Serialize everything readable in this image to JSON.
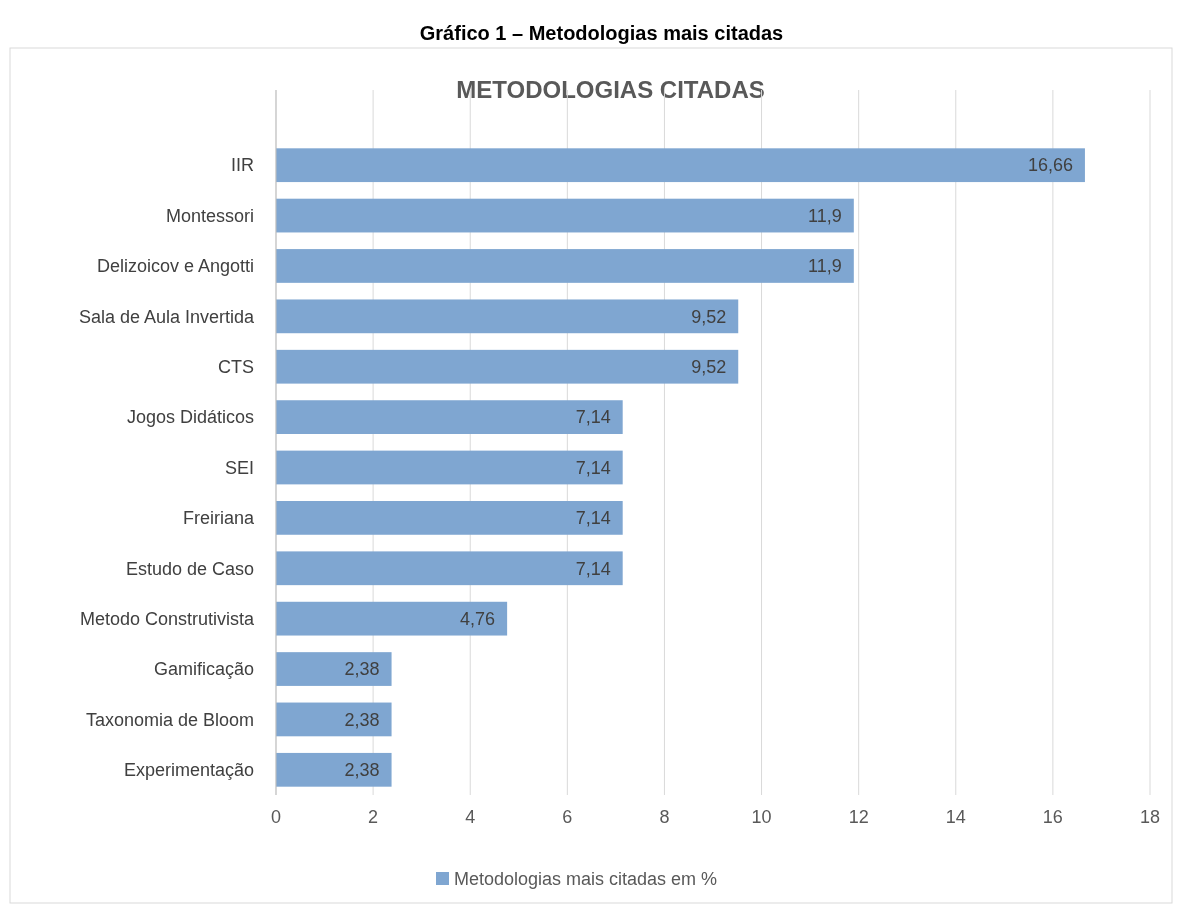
{
  "chart_data": {
    "type": "bar",
    "orientation": "horizontal",
    "title": "Gráfico 1 – Metodologias mais citadas",
    "subtitle": "METODOLOGIAS CITADAS",
    "categories": [
      "IIR",
      "Montessori",
      "Delizoicov e Angotti",
      "Sala de Aula Invertida",
      "CTS",
      "Jogos Didáticos",
      "SEI",
      "Freiriana",
      "Estudo de Caso",
      "Metodo Construtivista",
      "Gamificação",
      "Taxonomia de Bloom",
      "Experimentação"
    ],
    "series": [
      {
        "name": "Metodologias mais citadas em %",
        "color": "#7fa6d1",
        "values": [
          16.66,
          11.9,
          11.9,
          9.52,
          9.52,
          7.14,
          7.14,
          7.14,
          7.14,
          4.76,
          2.38,
          2.38,
          2.38
        ],
        "value_labels": [
          "16,66",
          "11,9",
          "11,9",
          "9,52",
          "9,52",
          "7,14",
          "7,14",
          "7,14",
          "7,14",
          "4,76",
          "2,38",
          "2,38",
          "2,38"
        ]
      }
    ],
    "xlim": [
      0,
      18
    ],
    "xticks": [
      0,
      2,
      4,
      6,
      8,
      10,
      12,
      14,
      16,
      18
    ],
    "grid": "x",
    "legend": "bottom"
  }
}
